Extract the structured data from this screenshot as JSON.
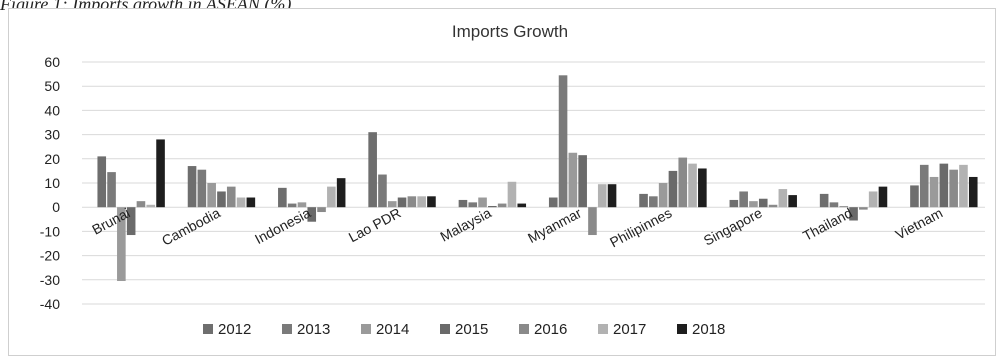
{
  "caption": "Figure 1: Imports growth in ASEAN (%)",
  "chart_data": {
    "type": "bar",
    "title": "Imports Growth",
    "xlabel": "",
    "ylabel": "",
    "ylim": [
      -40,
      60
    ],
    "yticks": [
      -40,
      -30,
      -20,
      -10,
      0,
      10,
      20,
      30,
      40,
      50,
      60
    ],
    "grid": true,
    "legend_position": "bottom",
    "categories": [
      "Brunai",
      "Cambodia",
      "Indonesia",
      "Lao PDR",
      "Malaysia",
      "Myanmar",
      "Philipinnes",
      "Singapore",
      "Thailand",
      "Vietnam"
    ],
    "series": [
      {
        "name": "2012",
        "color": "#6e6e6e",
        "values": [
          21,
          17,
          8,
          31,
          3,
          4,
          5.5,
          3,
          5.5,
          9
        ]
      },
      {
        "name": "2013",
        "color": "#7a7a7a",
        "values": [
          14.5,
          15.5,
          1.5,
          13.5,
          2,
          54.5,
          4.5,
          6.5,
          2,
          17.5
        ]
      },
      {
        "name": "2014",
        "color": "#9a9a9a",
        "values": [
          -30.5,
          10,
          2,
          2.5,
          4,
          22.5,
          10,
          2.5,
          0.5,
          12.5
        ]
      },
      {
        "name": "2015",
        "color": "#6a6a6a",
        "values": [
          -11.5,
          6.5,
          -6,
          4,
          0.5,
          21.5,
          15,
          3.5,
          -5.5,
          18
        ]
      },
      {
        "name": "2016",
        "color": "#8a8a8a",
        "values": [
          2.5,
          8.5,
          -2,
          4.5,
          1.5,
          -11.5,
          20.5,
          1,
          -1,
          15.5
        ]
      },
      {
        "name": "2017",
        "color": "#b2b2b2",
        "values": [
          1,
          4,
          8.5,
          4.5,
          10.5,
          9.5,
          18,
          7.5,
          6.5,
          17.5
        ]
      },
      {
        "name": "2018",
        "color": "#1e1e1e",
        "values": [
          28,
          4,
          12,
          4.5,
          1.5,
          9.5,
          16,
          5,
          8.5,
          12.5
        ]
      }
    ]
  }
}
